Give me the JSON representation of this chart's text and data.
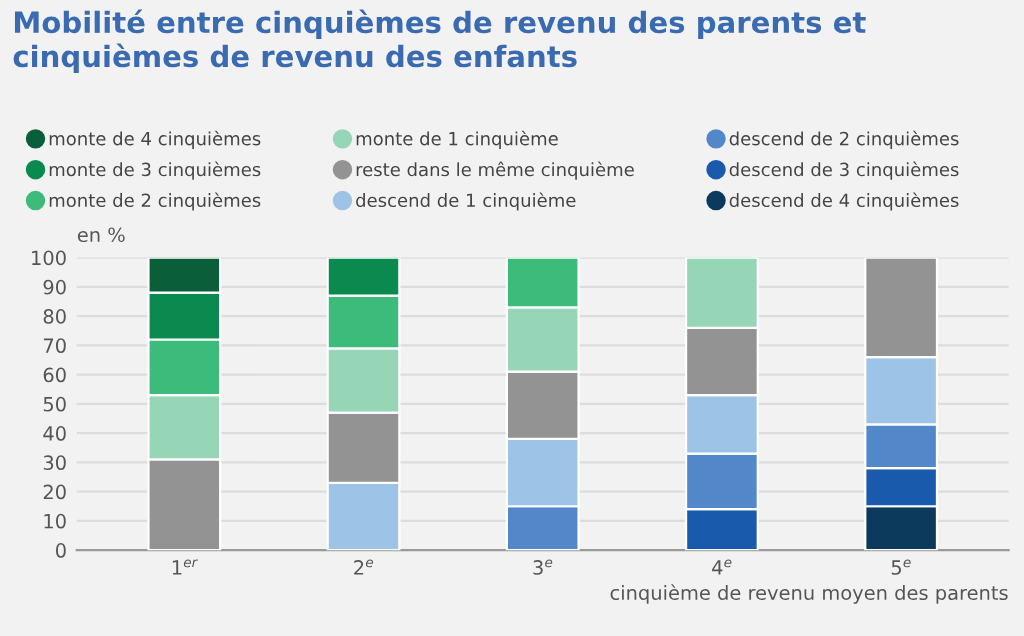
{
  "chart_data": {
    "type": "bar",
    "stacked": true,
    "title": "Mobilité entre cinquièmes de revenu des parents et cinquièmes de revenu des enfants",
    "ylabel": "en %",
    "xlabel": "cinquième de revenu moyen des parents",
    "categories": [
      "1$^{er}$",
      "2$^{e}$",
      "3$^{e}$",
      "4$^{e}$",
      "5$^{e}$"
    ],
    "series": [
      {
        "name": "descend de 4 cinquièmes",
        "color": "#0b3a5c",
        "values": [
          null,
          null,
          null,
          null,
          15
        ]
      },
      {
        "name": "descend de 3 cinquièmes",
        "color": "#1a5aad",
        "values": [
          null,
          null,
          null,
          14,
          13
        ]
      },
      {
        "name": "descend de 2 cinquièmes",
        "color": "#5288c9",
        "values": [
          null,
          null,
          15,
          19,
          15
        ]
      },
      {
        "name": "descend de 1 cinquième",
        "color": "#9dc3e6",
        "values": [
          null,
          23,
          23,
          20,
          23
        ]
      },
      {
        "name": "reste dans le même cinquième",
        "color": "#939393",
        "values": [
          31,
          24,
          23,
          23,
          34
        ]
      },
      {
        "name": "monte de 1 cinquième",
        "color": "#96d5b5",
        "values": [
          22,
          22,
          22,
          24,
          null
        ]
      },
      {
        "name": "monte de 2 cinquièmes",
        "color": "#3dbb7a",
        "values": [
          19,
          18,
          17,
          null,
          null
        ]
      },
      {
        "name": "monte de 3 cinquièmes",
        "color": "#0a8a4e",
        "values": [
          16,
          13,
          null,
          null,
          null
        ]
      },
      {
        "name": "monte de 4 cinquièmes",
        "color": "#0b5e3a",
        "values": [
          12,
          null,
          null,
          null,
          null
        ]
      }
    ],
    "ylim": [
      0,
      100
    ],
    "yticks": [
      0,
      10,
      20,
      30,
      40,
      50,
      60,
      70,
      80,
      90,
      100
    ],
    "grid": "y",
    "legend": "top"
  }
}
